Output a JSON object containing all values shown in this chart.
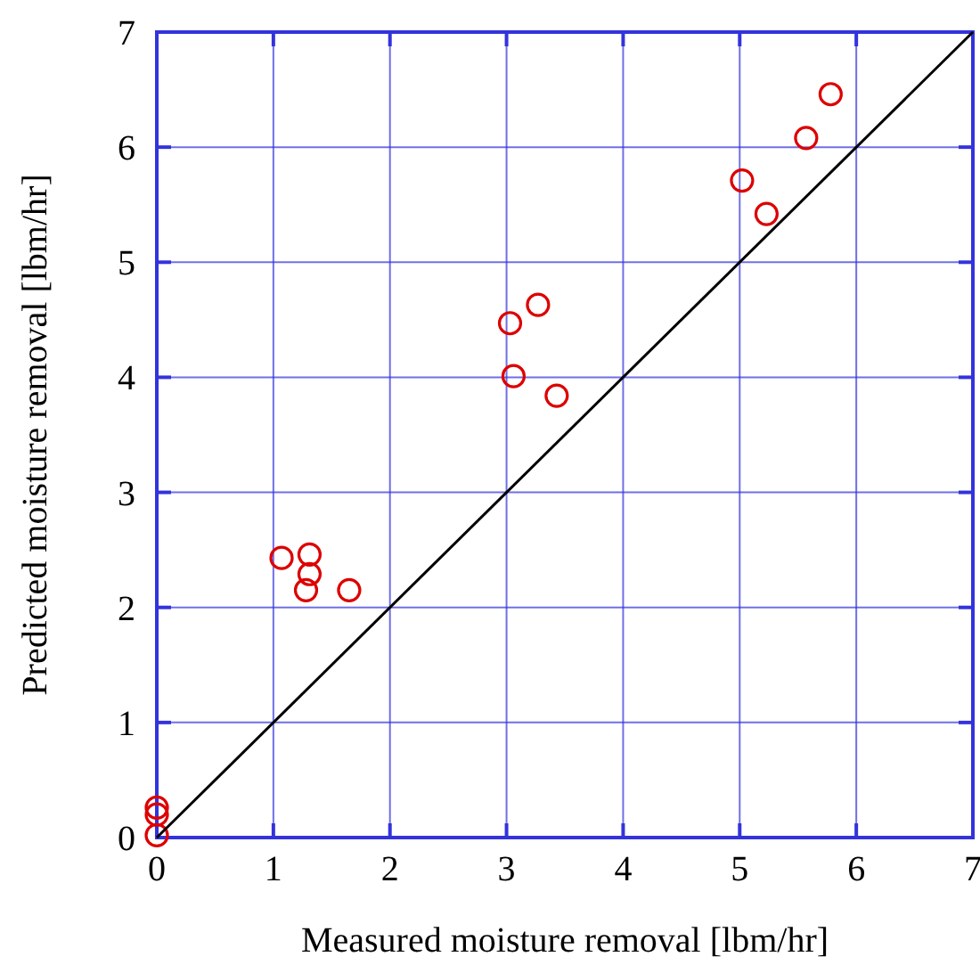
{
  "chart_data": {
    "type": "scatter",
    "xlabel": "Measured moisture removal [lbm/hr]",
    "ylabel": "Predicted moisture removal [lbm/hr]",
    "xlim": [
      0,
      7
    ],
    "ylim": [
      0,
      7
    ],
    "xticks": [
      0,
      1,
      2,
      3,
      4,
      5,
      6,
      7
    ],
    "yticks": [
      0,
      1,
      2,
      3,
      4,
      5,
      6,
      7
    ],
    "grid": true,
    "series": [
      {
        "color": "#dd0000",
        "marker": "circle",
        "x": [
          5.78,
          5.57,
          5.02,
          5.23,
          3.27,
          3.03,
          3.06,
          3.43,
          1.07,
          1.31,
          1.31,
          1.28,
          1.65,
          0,
          0,
          0
        ],
        "values": [
          6.46,
          6.08,
          5.71,
          5.42,
          4.63,
          4.47,
          4.01,
          3.84,
          2.43,
          2.46,
          2.29,
          2.15,
          2.15,
          0.26,
          0.2,
          0.02
        ]
      },
      {
        "type": "line",
        "color": "#000000",
        "line_style": "solid",
        "x": [
          0,
          7
        ],
        "values": [
          0,
          7
        ]
      }
    ]
  }
}
